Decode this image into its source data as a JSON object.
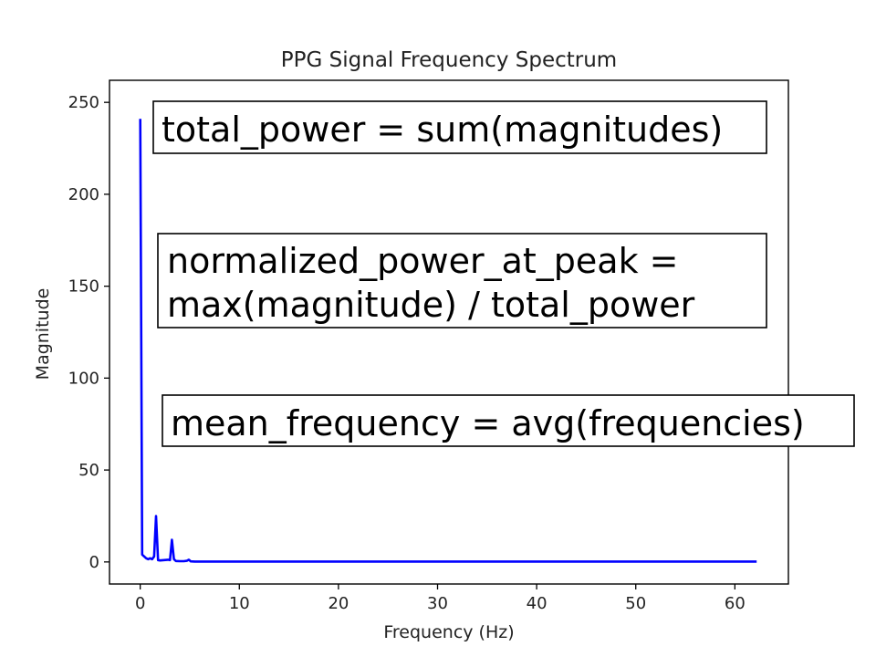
{
  "chart_data": {
    "type": "line",
    "title": "PPG Signal Frequency Spectrum",
    "xlabel": "Frequency (Hz)",
    "ylabel": "Magnitude",
    "xlim": [
      -3.1,
      65.4
    ],
    "ylim": [
      -12,
      262
    ],
    "xticks": [
      0,
      10,
      20,
      30,
      40,
      50,
      60
    ],
    "yticks": [
      0,
      50,
      100,
      150,
      200,
      250
    ],
    "xtick_labels": [
      "0",
      "10",
      "20",
      "30",
      "40",
      "50",
      "60"
    ],
    "ytick_labels": [
      "0",
      "50",
      "100",
      "150",
      "200",
      "250"
    ],
    "grid": false,
    "legend": "none",
    "series": [
      {
        "color": "#0000ff",
        "x": [
          0.0,
          0.1,
          0.2,
          0.4,
          0.6,
          0.8,
          1.0,
          1.2,
          1.4,
          1.6,
          1.8,
          2.0,
          2.4,
          2.8,
          3.0,
          3.2,
          3.4,
          3.6,
          4.0,
          4.4,
          4.7,
          4.9,
          5.1,
          5.5,
          10,
          20,
          30,
          40,
          50,
          62.2
        ],
        "values": [
          241,
          120,
          4,
          3,
          2,
          1.5,
          2,
          1.5,
          3,
          25,
          1,
          0.8,
          1,
          1.2,
          1,
          12,
          1.5,
          0.5,
          0.4,
          0.4,
          0.6,
          1.2,
          0.3,
          0.2,
          0.2,
          0.2,
          0.2,
          0.2,
          0.2,
          0.2
        ]
      }
    ],
    "annotations": [
      {
        "lines": [
          "total_power = sum(magnitudes)"
        ]
      },
      {
        "lines": [
          "normalized_power_at_peak =",
          "max(magnitude) / total_power"
        ]
      },
      {
        "lines": [
          "mean_frequency = avg(frequencies)"
        ]
      }
    ]
  }
}
